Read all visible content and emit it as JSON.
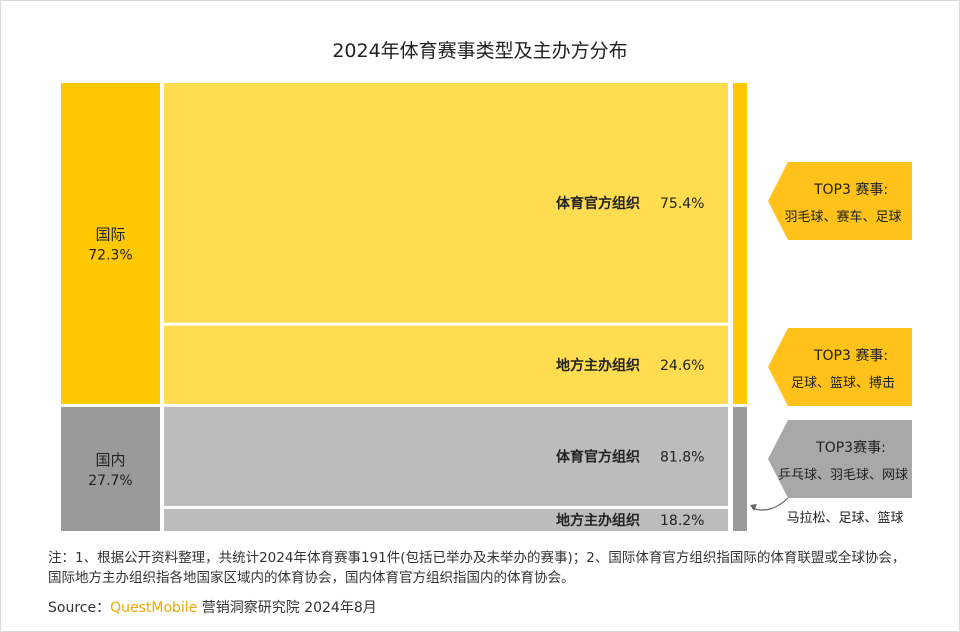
{
  "title": "2024年体育赛事类型及主办方分布",
  "chart_data": {
    "type": "mekko",
    "title": "2024年体育赛事类型及主办方分布",
    "groups": [
      {
        "name": "国际",
        "share": 72.3,
        "share_label": "72.3%",
        "color": "#ffc800",
        "segments": [
          {
            "name": "体育官方组织",
            "value": 75.4,
            "label": "75.4%",
            "color": "#ffdc50"
          },
          {
            "name": "地方主办组织",
            "value": 24.6,
            "label": "24.6%",
            "color": "#ffdc50"
          }
        ]
      },
      {
        "name": "国内",
        "share": 27.7,
        "share_label": "27.7%",
        "color": "#9a9a9a",
        "segments": [
          {
            "name": "体育官方组织",
            "value": 81.8,
            "label": "81.8%",
            "color": "#bcbcbc"
          },
          {
            "name": "地方主办组织",
            "value": 18.2,
            "label": "18.2%",
            "color": "#bcbcbc"
          }
        ]
      }
    ],
    "callouts": [
      {
        "title": "TOP3 赛事:",
        "text": "羽毛球、赛车、足球",
        "color": "#ffc21a"
      },
      {
        "title": "TOP3 赛事:",
        "text": "足球、篮球、搏击",
        "color": "#ffc21a"
      },
      {
        "title": "TOP3赛事:",
        "text": "乒乓球、羽毛球、网球",
        "color": "#a8a8a8"
      }
    ],
    "extra_callout": "马拉松、足球、篮球"
  },
  "note": "注：1、根据公开资料整理，共统计2024年体育赛事191件(包括已举办及未举办的赛事)；2、国际体育官方组织指国际的体育联盟或全球协会，国际地方主办组织指各地国家区域内的体育协会，国内体育官方组织指国内的体育协会。",
  "source": {
    "label": "Source：",
    "brand": "QuestMobile",
    "rest": " 营销洞察研究院 2024年8月"
  }
}
